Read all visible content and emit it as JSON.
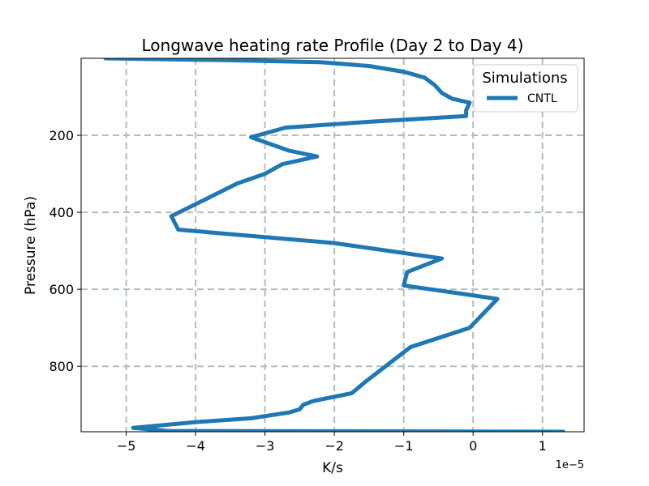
{
  "chart_data": {
    "type": "line",
    "title": "Longwave heating rate Profile (Day 2 to Day 4)",
    "xlabel": "K/s",
    "ylabel": "Pressure (hPa)",
    "x_offset_label": "1e−5",
    "x_scale": 1e-05,
    "xlim": [
      -5.65,
      1.6
    ],
    "ylim": [
      970,
      0
    ],
    "y_inverted": true,
    "xticks": [
      -5,
      -4,
      -3,
      -2,
      -1,
      0,
      1
    ],
    "xtick_labels": [
      "−5",
      "−4",
      "−3",
      "−2",
      "−1",
      "0",
      "1"
    ],
    "yticks": [
      200,
      400,
      600,
      800
    ],
    "ytick_labels": [
      "200",
      "400",
      "600",
      "800"
    ],
    "grid": true,
    "legend_title": "Simulations",
    "legend_position": "top-right",
    "series": [
      {
        "name": "CNTL",
        "color": "#1f77b4",
        "points": [
          [
            -5.3,
            0
          ],
          [
            -3.5,
            5
          ],
          [
            -2.2,
            10
          ],
          [
            -1.5,
            20
          ],
          [
            -1.0,
            35
          ],
          [
            -0.7,
            50
          ],
          [
            -0.55,
            70
          ],
          [
            -0.45,
            90
          ],
          [
            -0.3,
            105
          ],
          [
            -0.05,
            115
          ],
          [
            -0.1,
            135
          ],
          [
            -0.1,
            150
          ],
          [
            -1.5,
            165
          ],
          [
            -2.7,
            180
          ],
          [
            -3.2,
            205
          ],
          [
            -2.65,
            240
          ],
          [
            -2.25,
            255
          ],
          [
            -2.75,
            275
          ],
          [
            -3.0,
            300
          ],
          [
            -3.4,
            325
          ],
          [
            -3.9,
            370
          ],
          [
            -4.35,
            410
          ],
          [
            -4.25,
            445
          ],
          [
            -2.0,
            480
          ],
          [
            -0.45,
            520
          ],
          [
            -0.95,
            555
          ],
          [
            -1.0,
            590
          ],
          [
            0.35,
            625
          ],
          [
            -0.05,
            700
          ],
          [
            -0.9,
            750
          ],
          [
            -1.55,
            840
          ],
          [
            -1.75,
            870
          ],
          [
            -2.3,
            890
          ],
          [
            -2.45,
            900
          ],
          [
            -2.5,
            912
          ],
          [
            -2.65,
            920
          ],
          [
            -3.2,
            935
          ],
          [
            -4.0,
            945
          ],
          [
            -4.9,
            960
          ],
          [
            -4.4,
            968
          ],
          [
            1.3,
            970
          ]
        ]
      }
    ]
  }
}
